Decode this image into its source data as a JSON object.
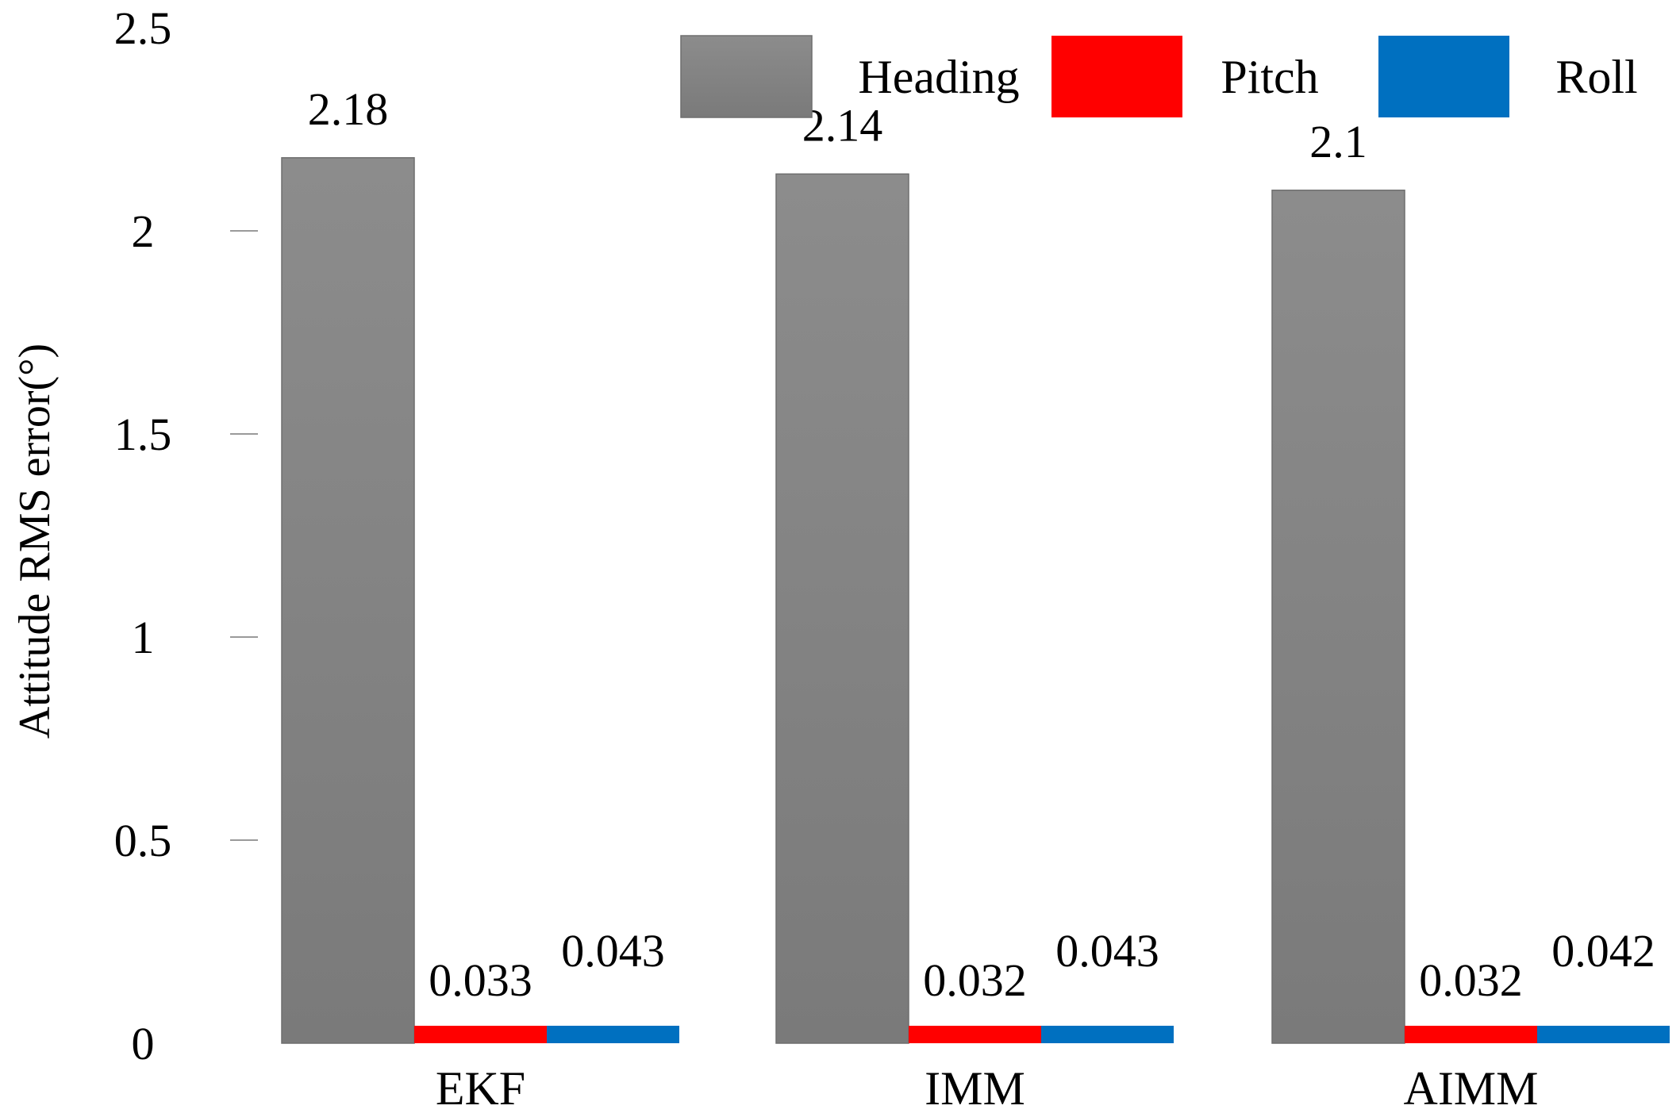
{
  "chart_data": {
    "type": "bar",
    "title": "",
    "xlabel": "",
    "ylabel": "Attitude RMS error(°)",
    "ylim": [
      0,
      2.5
    ],
    "yticks": [
      "0",
      "0.5",
      "1",
      "1.5",
      "2",
      "2.5"
    ],
    "categories": [
      "EKF",
      "IMM",
      "AIMM"
    ],
    "series": [
      {
        "name": "Heading",
        "color": "#858585",
        "values": [
          2.18,
          2.14,
          2.1
        ],
        "labels": [
          "2.18",
          "2.14",
          "2.1"
        ]
      },
      {
        "name": "Pitch",
        "color": "#ff0000",
        "values": [
          0.033,
          0.032,
          0.032
        ],
        "labels": [
          "0.033",
          "0.032",
          "0.032"
        ]
      },
      {
        "name": "Roll",
        "color": "#0070c0",
        "values": [
          0.043,
          0.043,
          0.042
        ],
        "labels": [
          "0.043",
          "0.043",
          "0.042"
        ]
      }
    ],
    "legend_position": "top-right",
    "grid": false
  }
}
